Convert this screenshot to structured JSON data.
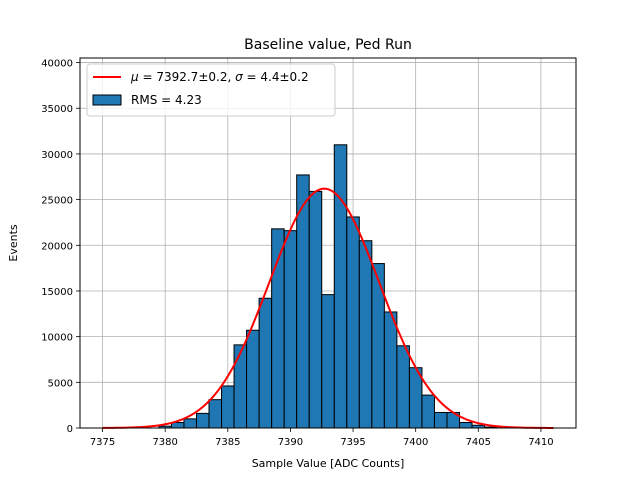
{
  "chart_data": {
    "type": "bar",
    "title": "Baseline value, Ped Run",
    "xlabel": "Sample Value [ADC Counts]",
    "ylabel": "Events",
    "xlim": [
      7373.2,
      7412.8
    ],
    "ylim": [
      0,
      40500
    ],
    "xticks": [
      7375,
      7380,
      7385,
      7390,
      7395,
      7400,
      7405,
      7410
    ],
    "yticks": [
      0,
      5000,
      10000,
      15000,
      20000,
      25000,
      30000,
      35000,
      40000
    ],
    "grid": true,
    "legend_position": "top-left",
    "bin_width": 1,
    "bins": [
      {
        "x": 7380,
        "value": 200
      },
      {
        "x": 7381,
        "value": 600
      },
      {
        "x": 7382,
        "value": 1000
      },
      {
        "x": 7383,
        "value": 1600
      },
      {
        "x": 7384,
        "value": 3100
      },
      {
        "x": 7385,
        "value": 4600
      },
      {
        "x": 7386,
        "value": 9100
      },
      {
        "x": 7387,
        "value": 10700
      },
      {
        "x": 7388,
        "value": 14200
      },
      {
        "x": 7389,
        "value": 21800
      },
      {
        "x": 7390,
        "value": 21600
      },
      {
        "x": 7391,
        "value": 27700
      },
      {
        "x": 7392,
        "value": 25900
      },
      {
        "x": 7393,
        "value": 14600
      },
      {
        "x": 7394,
        "value": 31000
      },
      {
        "x": 7395,
        "value": 23100
      },
      {
        "x": 7396,
        "value": 20500
      },
      {
        "x": 7397,
        "value": 18000
      },
      {
        "x": 7398,
        "value": 12700
      },
      {
        "x": 7399,
        "value": 9000
      },
      {
        "x": 7400,
        "value": 6600
      },
      {
        "x": 7401,
        "value": 3600
      },
      {
        "x": 7402,
        "value": 1700
      },
      {
        "x": 7403,
        "value": 1700
      },
      {
        "x": 7404,
        "value": 600
      },
      {
        "x": 7405,
        "value": 300
      },
      {
        "x": 7406,
        "value": 100
      }
    ],
    "fit": {
      "mu": 7392.7,
      "sigma": 4.4,
      "amplitude": 26200,
      "x_range": [
        7375,
        7411
      ],
      "color": "#ff0000"
    },
    "bar_color": "#1f77b4",
    "legend": [
      {
        "kind": "line",
        "color": "#ff0000",
        "parts": [
          {
            "text": "μ",
            "italic": true
          },
          {
            "text": " = 7392.7±0.2, ",
            "italic": false
          },
          {
            "text": "σ",
            "italic": true
          },
          {
            "text": " = 4.4±0.2",
            "italic": false
          }
        ]
      },
      {
        "kind": "patch",
        "color": "#1f77b4",
        "label": "RMS = 4.23"
      }
    ]
  }
}
